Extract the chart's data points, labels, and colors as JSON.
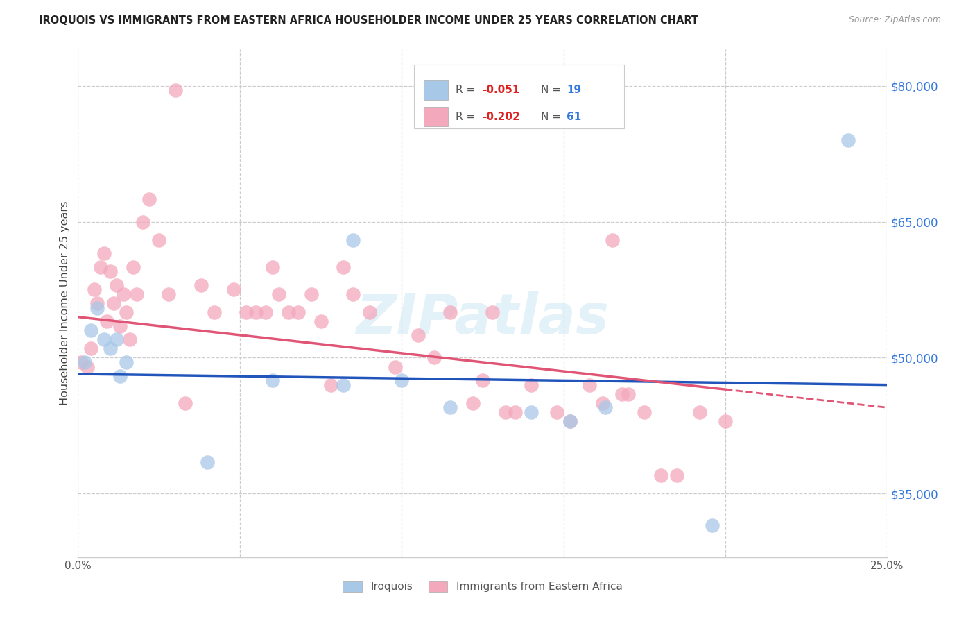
{
  "title": "IROQUOIS VS IMMIGRANTS FROM EASTERN AFRICA HOUSEHOLDER INCOME UNDER 25 YEARS CORRELATION CHART",
  "source": "Source: ZipAtlas.com",
  "ylabel": "Householder Income Under 25 years",
  "xlim": [
    0.0,
    0.25
  ],
  "ylim": [
    28000,
    84000
  ],
  "xtick_positions": [
    0.0,
    0.05,
    0.1,
    0.15,
    0.2,
    0.25
  ],
  "xtick_labels": [
    "0.0%",
    "",
    "",
    "",
    "",
    "25.0%"
  ],
  "ytick_values": [
    35000,
    50000,
    65000,
    80000
  ],
  "ytick_labels": [
    "$35,000",
    "$50,000",
    "$65,000",
    "$80,000"
  ],
  "legend_label1": "Iroquois",
  "legend_label2": "Immigrants from Eastern Africa",
  "R1": -0.051,
  "N1": 19,
  "R2": -0.202,
  "N2": 61,
  "blue_color": "#a8c8e8",
  "pink_color": "#f4a8bc",
  "blue_line_color": "#2255bb",
  "pink_line_color": "#e05575",
  "watermark": "ZIPatlas",
  "blue_line_x0": 0.0,
  "blue_line_y0": 48200,
  "blue_line_x1": 0.25,
  "blue_line_y1": 47000,
  "pink_line_x0": 0.0,
  "pink_line_y0": 54500,
  "pink_line_x1": 0.25,
  "pink_line_y1": 44500,
  "blue_x": [
    0.002,
    0.004,
    0.006,
    0.008,
    0.01,
    0.012,
    0.013,
    0.015,
    0.04,
    0.06,
    0.082,
    0.085,
    0.1,
    0.115,
    0.14,
    0.152,
    0.163,
    0.196,
    0.238
  ],
  "blue_y": [
    49500,
    53000,
    55500,
    52000,
    51000,
    52000,
    48000,
    49500,
    38500,
    47500,
    47000,
    63000,
    47500,
    44500,
    44000,
    43000,
    44500,
    31500,
    74000
  ],
  "pink_x": [
    0.001,
    0.003,
    0.004,
    0.005,
    0.006,
    0.007,
    0.008,
    0.009,
    0.01,
    0.011,
    0.012,
    0.013,
    0.014,
    0.015,
    0.016,
    0.017,
    0.018,
    0.02,
    0.022,
    0.025,
    0.028,
    0.03,
    0.038,
    0.042,
    0.048,
    0.052,
    0.055,
    0.06,
    0.062,
    0.065,
    0.068,
    0.072,
    0.075,
    0.082,
    0.085,
    0.09,
    0.098,
    0.105,
    0.11,
    0.115,
    0.122,
    0.125,
    0.128,
    0.132,
    0.135,
    0.14,
    0.148,
    0.152,
    0.158,
    0.162,
    0.165,
    0.17,
    0.175,
    0.18,
    0.185,
    0.192,
    0.2,
    0.168,
    0.078,
    0.058,
    0.033
  ],
  "pink_y": [
    49500,
    49000,
    51000,
    57500,
    56000,
    60000,
    61500,
    54000,
    59500,
    56000,
    58000,
    53500,
    57000,
    55000,
    52000,
    60000,
    57000,
    65000,
    67500,
    63000,
    57000,
    79500,
    58000,
    55000,
    57500,
    55000,
    55000,
    60000,
    57000,
    55000,
    55000,
    57000,
    54000,
    60000,
    57000,
    55000,
    49000,
    52500,
    50000,
    55000,
    45000,
    47500,
    55000,
    44000,
    44000,
    47000,
    44000,
    43000,
    47000,
    45000,
    63000,
    46000,
    44000,
    37000,
    37000,
    44000,
    43000,
    46000,
    47000,
    55000,
    45000
  ],
  "background_color": "#ffffff",
  "grid_color": "#cccccc"
}
